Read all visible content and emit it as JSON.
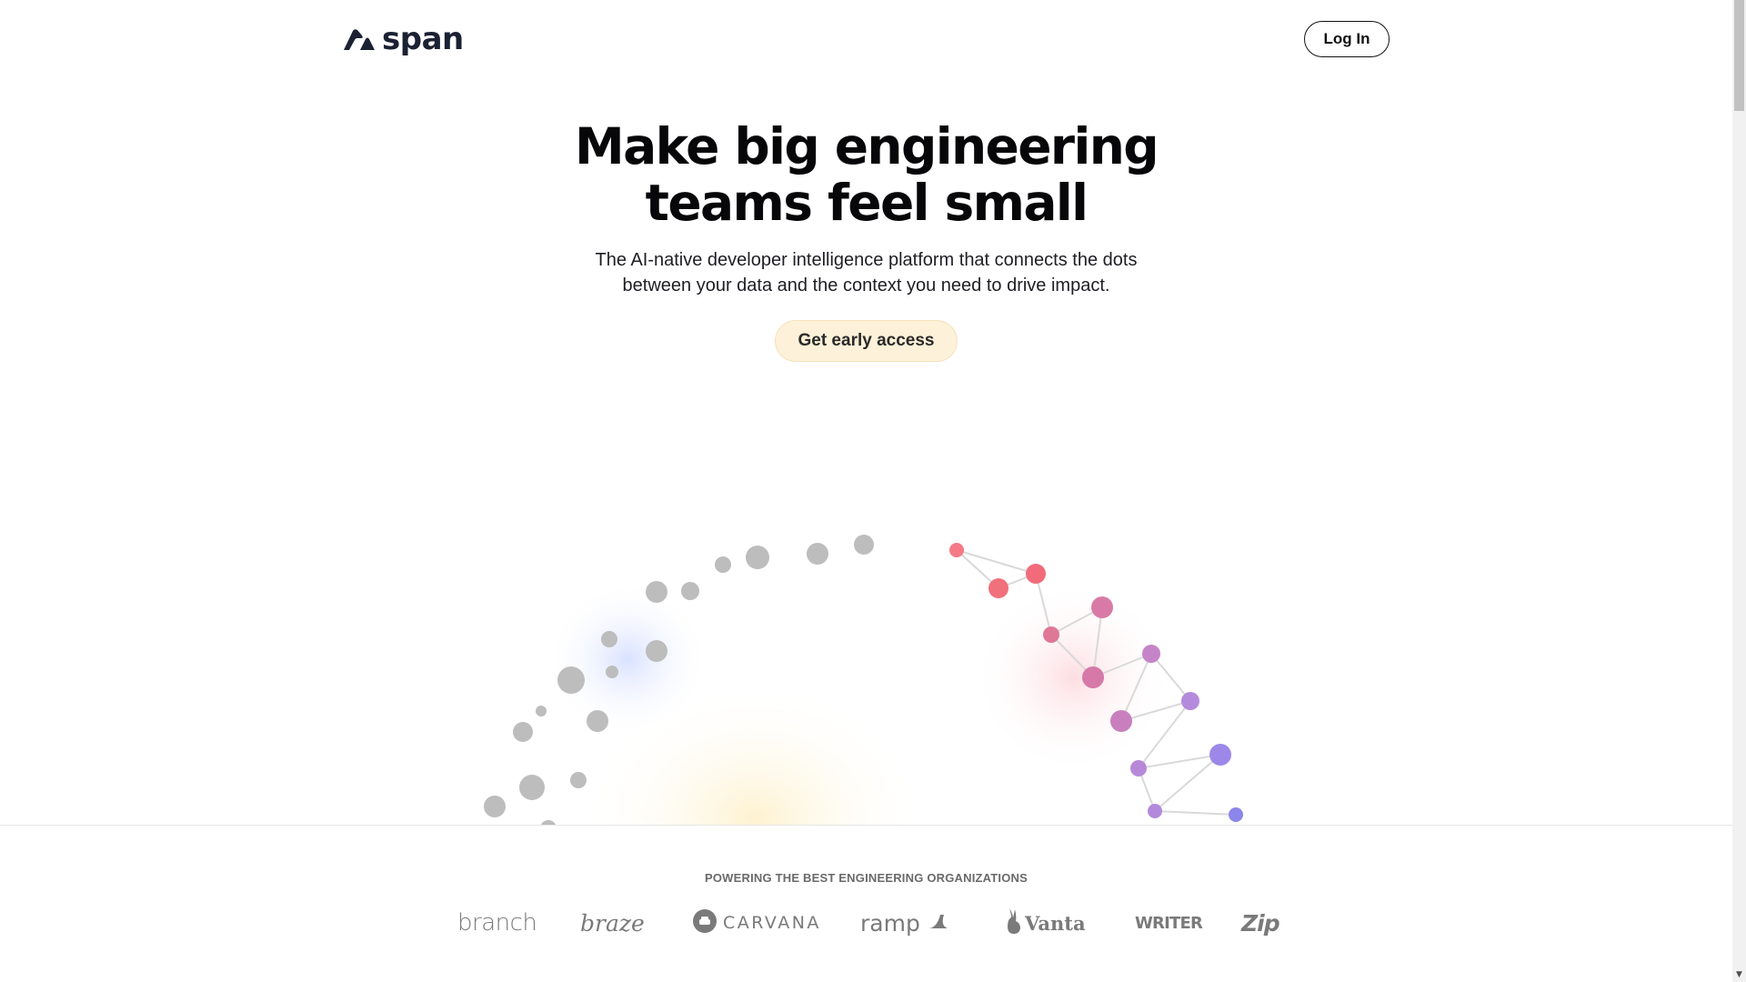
{
  "header": {
    "logo_text": "span",
    "login_label": "Log In"
  },
  "hero": {
    "title_line1": "Make big engineering",
    "title_line2": "teams feel small",
    "subtitle_line1": "The AI-native developer intelligence platform that connects the dots",
    "subtitle_line2": "between your data and the context you need to drive impact.",
    "cta_label": "Get early access"
  },
  "customers": {
    "heading": "POWERING THE BEST ENGINEERING ORGANIZATIONS",
    "logos": {
      "branch": "branch",
      "braze": "braze",
      "carvana": "CARVANA",
      "ramp": "ramp",
      "vanta": "Vanta",
      "writer": "WRITER",
      "zip": "Zip"
    }
  },
  "colors": {
    "cta_bg": "#fdf1d9",
    "node_grey": "#bdbdbd",
    "node_red": "#f26b7a",
    "node_pink": "#d678a8",
    "node_purple": "#b98ad6",
    "node_blue": "#8b86ea",
    "logo_grey": "#7a7a7a"
  },
  "icons": {
    "logo_mark": "span-arch-icon",
    "carvana_mark": "carvana-car-icon",
    "ramp_mark": "ramp-swoosh-icon",
    "vanta_mark": "vanta-rabbit-icon",
    "scroll_down": "scroll-down-arrow-icon"
  }
}
